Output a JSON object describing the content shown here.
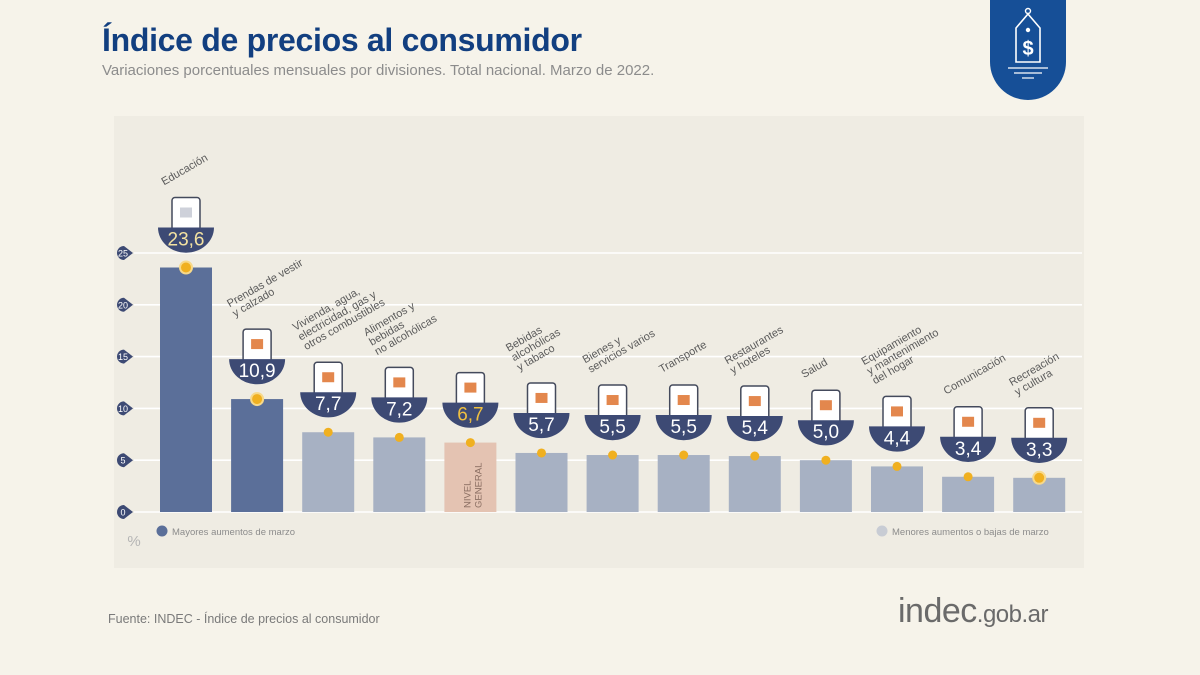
{
  "header": {
    "title": "Índice de precios al consumidor",
    "subtitle": "Variaciones porcentuales mensuales por divisiones. Total nacional. Marzo de 2022."
  },
  "badge": {
    "icon": "price-tag-dollar-icon",
    "color": "#164f97"
  },
  "footer": {
    "source": "Fuente: INDEC - Índice de precios al consumidor",
    "logo_main": "indec",
    "logo_domain": ".gob.ar"
  },
  "colors": {
    "high": "#5b6f99",
    "low": "#a7b1c3",
    "general": "#e4c3b2",
    "bowl": "#3d4a74",
    "dot": "#f0b020",
    "value_text_high": "#f3e2a2",
    "value_text_general": "#f0c040",
    "value_text": "#ffffff"
  },
  "chart_data": {
    "type": "bar",
    "title": "Índice de precios al consumidor",
    "subtitle": "Variaciones porcentuales mensuales por divisiones. Total nacional. Marzo de 2022.",
    "xlabel": "",
    "ylabel": "%",
    "ylim": [
      0,
      25
    ],
    "yticks": [
      0,
      5,
      10,
      15,
      20,
      25
    ],
    "grid": true,
    "categories": [
      "Educación",
      "Prendas de vestir y calzado",
      "Vivienda, agua, electricidad, gas y otros combustibles",
      "Alimentos y bebidas no alcohólicas",
      "Nivel general",
      "Bebidas alcohólicas y tabaco",
      "Bienes y servicios varios",
      "Transporte",
      "Restaurantes y hoteles",
      "Salud",
      "Equipamiento y mantenimiento del hogar",
      "Comunicación",
      "Recreación y cultura"
    ],
    "label_lines": [
      [
        "Educación"
      ],
      [
        "Prendas de vestir",
        "y calzado"
      ],
      [
        "Vivienda, agua,",
        "electricidad, gas y",
        "otros combustibles"
      ],
      [
        "Alimentos y",
        "bebidas",
        "no alcohólicas"
      ],
      [],
      [
        "Bebidas",
        "alcohólicas",
        "y tabaco"
      ],
      [
        "Bienes y",
        "servicios varios"
      ],
      [
        "Transporte"
      ],
      [
        "Restaurantes",
        "y hoteles"
      ],
      [
        "Salud"
      ],
      [
        "Equipamiento",
        "y mantenimiento",
        "del hogar"
      ],
      [
        "Comunicación"
      ],
      [
        "Recreación",
        "y cultura"
      ]
    ],
    "values": [
      23.6,
      10.9,
      7.7,
      7.2,
      6.7,
      5.7,
      5.5,
      5.5,
      5.4,
      5.0,
      4.4,
      3.4,
      3.3
    ],
    "value_labels": [
      "23,6",
      "10,9",
      "7,7",
      "7,2",
      "6,7",
      "5,7",
      "5,5",
      "5,5",
      "5,4",
      "5,0",
      "4,4",
      "3,4",
      "3,3"
    ],
    "groups": [
      "high",
      "high",
      "low",
      "low",
      "general",
      "low",
      "low",
      "low",
      "low",
      "low",
      "low",
      "low",
      "low"
    ],
    "icons": [
      "notebook-icon",
      "shirt-icon",
      "lightbulb-tools-icon",
      "food-icon",
      "basket-icon",
      "bottle-glass-icon",
      "comb-scissors-icon",
      "car-sube-icon",
      "plate-cutlery-icon",
      "first-aid-icon",
      "washing-machine-icon",
      "smartphone-icon",
      "umbrella-sun-icon"
    ],
    "general_bar_label": [
      "NIVEL",
      "GENERAL"
    ],
    "legend": [
      {
        "group": "high",
        "label": "Mayores aumentos de marzo",
        "position": "bottom-left"
      },
      {
        "group": "low",
        "label": "Menores aumentos o bajas de marzo",
        "position": "bottom-right"
      }
    ]
  }
}
